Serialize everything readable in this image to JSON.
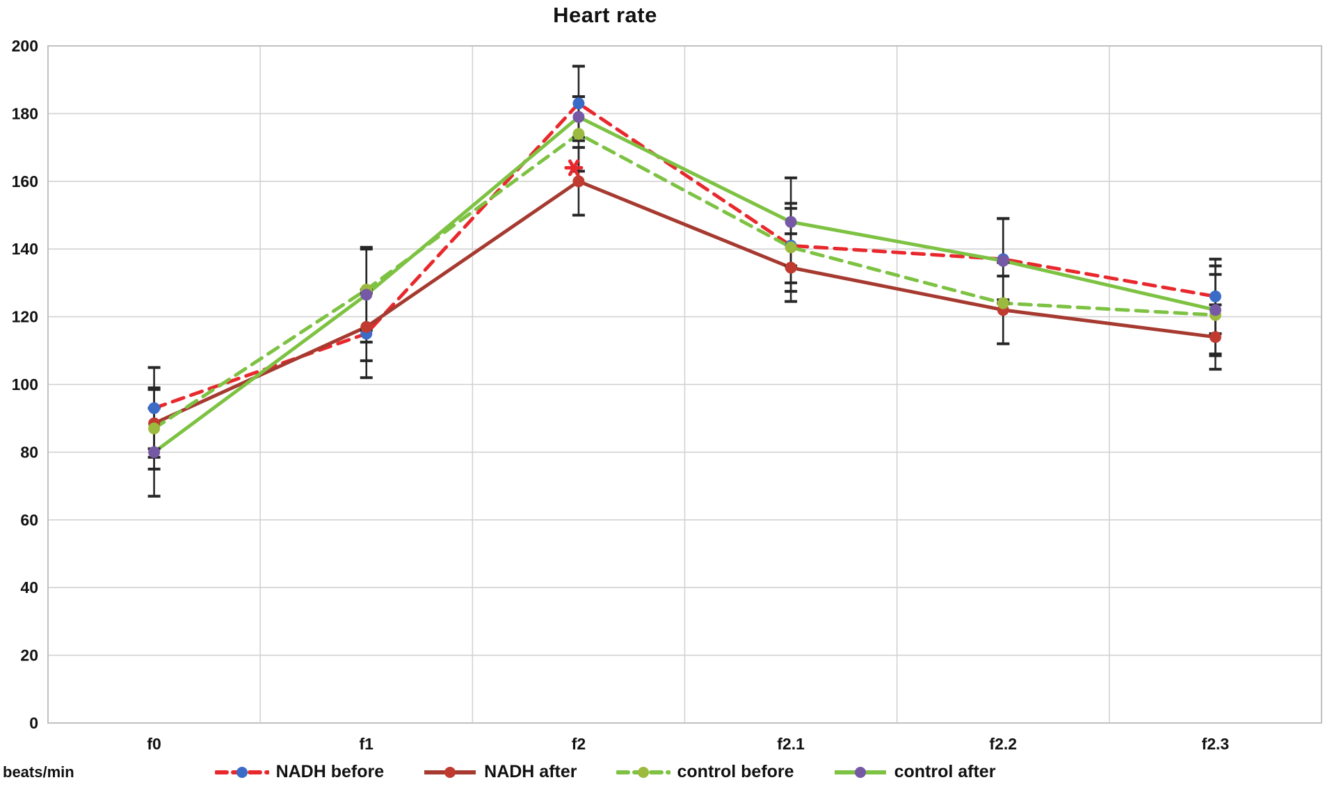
{
  "chart_data": {
    "type": "line",
    "title": "Heart rate",
    "ylabel": "beats/min",
    "xlabel": "",
    "categories": [
      "f0",
      "f1",
      "f2",
      "f2.1",
      "f2.2",
      "f2.3"
    ],
    "y_axis": {
      "min": 0,
      "max": 200,
      "step": 20,
      "ticks": [
        "0",
        "20",
        "40",
        "60",
        "80",
        "100",
        "120",
        "140",
        "160",
        "180",
        "200"
      ]
    },
    "grid": "on",
    "legend_position": "bottom",
    "series": [
      {
        "name": "NADH before",
        "line_style": "dashed",
        "line_color": "#e8282d",
        "marker_color": "#3a6bc7",
        "values": [
          93,
          115,
          183,
          141,
          137,
          126
        ],
        "errors": [
          12,
          13,
          11,
          11,
          12,
          11
        ]
      },
      {
        "name": "NADH after",
        "line_style": "solid",
        "line_color": "#a63a30",
        "marker_color": "#c03a30",
        "values": [
          88.5,
          117,
          160,
          134.5,
          122,
          114
        ],
        "errors": [
          10,
          10,
          10,
          10,
          10,
          9.5
        ]
      },
      {
        "name": "control before",
        "line_style": "dashed",
        "line_color": "#7dc242",
        "marker_color": "#9cba3d",
        "values": [
          87,
          128,
          174,
          140.5,
          124,
          120.5
        ],
        "errors": [
          12,
          12,
          11,
          13,
          12,
          12
        ]
      },
      {
        "name": "control after",
        "line_style": "solid",
        "line_color": "#7dc242",
        "marker_color": "#7659a5",
        "values": [
          80,
          126.5,
          179,
          148,
          136.5,
          122
        ],
        "errors": [
          13,
          14,
          6,
          13,
          12.5,
          13
        ]
      }
    ],
    "annotations": [
      {
        "category": "f2",
        "value": 164,
        "symbol": "asterisk",
        "color": "#e8282d"
      }
    ],
    "colors": {
      "gridline": "#d2d2d2",
      "plot_border": "#c0c0c0",
      "error_bar": "#262626",
      "text": "#111111",
      "background": "#ffffff"
    }
  }
}
